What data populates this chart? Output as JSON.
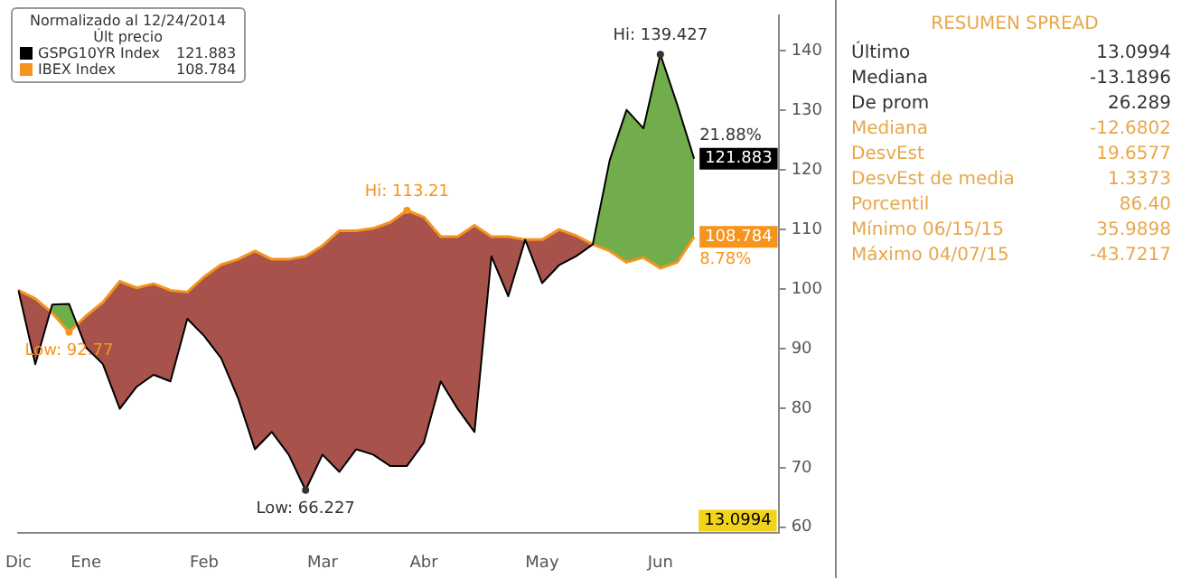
{
  "chart_data": [
    {
      "type": "line",
      "legend_title": "Normalizado al 12/24/2014\nÚlt precio",
      "legend": "top left",
      "categories": [
        "Dic",
        null,
        null,
        null,
        "Ene",
        null,
        null,
        null,
        null,
        null,
        null,
        "Feb",
        null,
        null,
        null,
        null,
        null,
        null,
        "Mar",
        null,
        null,
        null,
        null,
        null,
        "Abr",
        null,
        null,
        null,
        null,
        null,
        null,
        "May",
        null,
        null,
        null,
        null,
        null,
        null,
        "Jun",
        null,
        null
      ],
      "series": [
        {
          "name": "GSPG10YR Index",
          "color": "#000000",
          "values": [
            99.8,
            87.4,
            97.4,
            97.5,
            90.2,
            87.4,
            79.9,
            83.6,
            85.6,
            84.5,
            95,
            92.1,
            88.4,
            81.7,
            73.1,
            76,
            72.2,
            66.227,
            72.2,
            69.3,
            73.1,
            72.2,
            70.3,
            70.3,
            74.2,
            84.5,
            79.9,
            76,
            105.5,
            98.8,
            108.3,
            101,
            104,
            105.5,
            107.5,
            121.6,
            130.1,
            127,
            139.427,
            131,
            121.883
          ],
          "value_labels": [
            null,
            null,
            null,
            null,
            null,
            null,
            null,
            null,
            null,
            null,
            null,
            null,
            null,
            null,
            null,
            null,
            null,
            null,
            null,
            null,
            null,
            null,
            null,
            null,
            null,
            null,
            null,
            null,
            null,
            null,
            null,
            null,
            null,
            null,
            null,
            null,
            null,
            null,
            null,
            null,
            "121.883"
          ]
        },
        {
          "name": "IBEX Index",
          "color": "#f7941d",
          "values": [
            99.8,
            98.4,
            96,
            92.77,
            95.5,
            97.8,
            101.3,
            100.2,
            100.9,
            99.8,
            99.5,
            102.1,
            104.1,
            105,
            106.4,
            105,
            105,
            105.5,
            107.3,
            109.8,
            109.8,
            110.2,
            111.2,
            113.21,
            112.1,
            108.8,
            108.8,
            110.7,
            108.8,
            108.8,
            108.3,
            108.3,
            110,
            109,
            107.5,
            106.4,
            104.5,
            105.3,
            103.5,
            104.5,
            108.784
          ],
          "value_labels": [
            null,
            null,
            null,
            null,
            null,
            null,
            null,
            null,
            null,
            null,
            null,
            null,
            null,
            null,
            null,
            null,
            null,
            null,
            null,
            null,
            null,
            null,
            null,
            null,
            null,
            null,
            null,
            null,
            null,
            null,
            null,
            null,
            null,
            null,
            null,
            null,
            null,
            null,
            null,
            null,
            "108.784"
          ]
        }
      ],
      "ylim": [
        59,
        146
      ],
      "yticks": [
        60,
        70,
        80,
        90,
        100,
        110,
        120,
        130,
        140
      ],
      "annotations": [
        {
          "text": "Hi: 139.427",
          "y": 139.427
        },
        {
          "text": "Low: 66.227",
          "y": 66.227
        },
        {
          "text": "Hi: 113.21",
          "y": 113.21
        },
        {
          "text": "Low: 92.77",
          "y": 92.77
        },
        "21.88%",
        "8.78%",
        "13.0994"
      ]
    },
    {
      "type": "other",
      "title": "RESUMEN SPREAD",
      "categories": [
        "Último",
        "Mediana",
        "De prom",
        "Mediana",
        "DesvEst",
        "DesvEst de media",
        "Porcentil",
        "Mínimo 06/15/15",
        "Máximo 04/07/15"
      ],
      "value_labels": [
        "13.0994",
        "-13.1896",
        "26.289",
        "-12.6802",
        "19.6577",
        "1.3373",
        "86.40",
        "35.9898",
        "-43.7217"
      ],
      "colors": [
        "#333333",
        "#333333",
        "#333333",
        "#e8a74a",
        "#e8a74a",
        "#e8a74a",
        "#e8a74a",
        "#e8a74a",
        "#e8a74a"
      ]
    }
  ]
}
